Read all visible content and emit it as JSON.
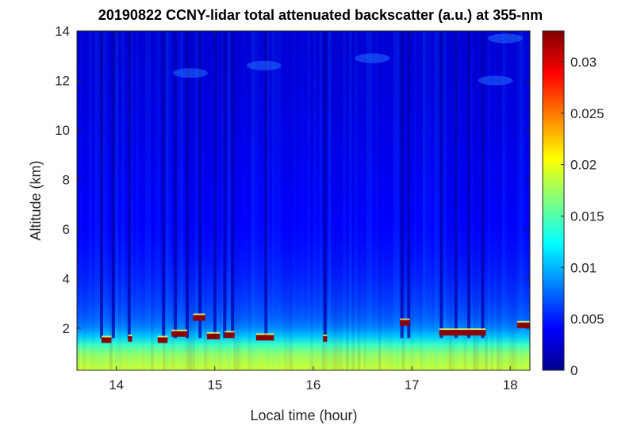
{
  "chart_data": {
    "type": "heatmap",
    "title": "20190822 CCNY-lidar total attenuated backscatter (a.u.) at 355-nm",
    "xlabel": "Local time (hour)",
    "ylabel": "Altitude (km)",
    "xlim": [
      13.6,
      18.2
    ],
    "ylim": [
      0.3,
      14
    ],
    "xticks": [
      14,
      15,
      16,
      17,
      18
    ],
    "yticks": [
      2,
      4,
      6,
      8,
      10,
      12,
      14
    ],
    "colorbar": {
      "colormap": "jet",
      "range": [
        0,
        0.033
      ],
      "ticks": [
        0,
        0.005,
        0.01,
        0.015,
        0.02,
        0.025,
        0.03
      ],
      "tick_labels": [
        "0",
        "0.005",
        "0.01",
        "0.015",
        "0.02",
        "0.025",
        "0.03"
      ]
    },
    "profile": {
      "altitude_km": [
        0.3,
        0.8,
        1.2,
        1.5,
        1.8,
        2.2,
        3.0,
        4.0,
        5.0,
        6.0,
        8.0,
        10.0,
        12.0,
        14.0
      ],
      "value": [
        0.019,
        0.018,
        0.016,
        0.012,
        0.0095,
        0.0075,
        0.0062,
        0.0052,
        0.0046,
        0.0042,
        0.0038,
        0.0034,
        0.0031,
        0.0028
      ]
    },
    "dropout_columns_hour": [
      13.85,
      13.97,
      14.13,
      14.48,
      14.6,
      14.72,
      14.85,
      15.0,
      15.1,
      15.18,
      15.52,
      16.12,
      16.9,
      16.97,
      17.3,
      17.45,
      17.58,
      17.72
    ],
    "cloud_layers": [
      {
        "t_start": 13.85,
        "t_end": 13.95,
        "alt_km": 1.5
      },
      {
        "t_start": 14.12,
        "t_end": 14.16,
        "alt_km": 1.55
      },
      {
        "t_start": 14.42,
        "t_end": 14.52,
        "alt_km": 1.5
      },
      {
        "t_start": 14.56,
        "t_end": 14.72,
        "alt_km": 1.75
      },
      {
        "t_start": 14.78,
        "t_end": 14.9,
        "alt_km": 2.4
      },
      {
        "t_start": 14.92,
        "t_end": 15.05,
        "alt_km": 1.65
      },
      {
        "t_start": 15.1,
        "t_end": 15.2,
        "alt_km": 1.7
      },
      {
        "t_start": 15.42,
        "t_end": 15.6,
        "alt_km": 1.6
      },
      {
        "t_start": 16.1,
        "t_end": 16.14,
        "alt_km": 1.55
      },
      {
        "t_start": 16.88,
        "t_end": 16.98,
        "alt_km": 2.2
      },
      {
        "t_start": 17.28,
        "t_end": 17.75,
        "alt_km": 1.8
      },
      {
        "t_start": 18.07,
        "t_end": 18.2,
        "alt_km": 2.1
      }
    ],
    "high_cloud_patches": [
      {
        "t": 14.75,
        "alt_km": 12.3
      },
      {
        "t": 15.5,
        "alt_km": 12.6
      },
      {
        "t": 16.6,
        "alt_km": 12.9
      },
      {
        "t": 17.85,
        "alt_km": 12.0
      },
      {
        "t": 17.95,
        "alt_km": 13.7
      }
    ]
  }
}
